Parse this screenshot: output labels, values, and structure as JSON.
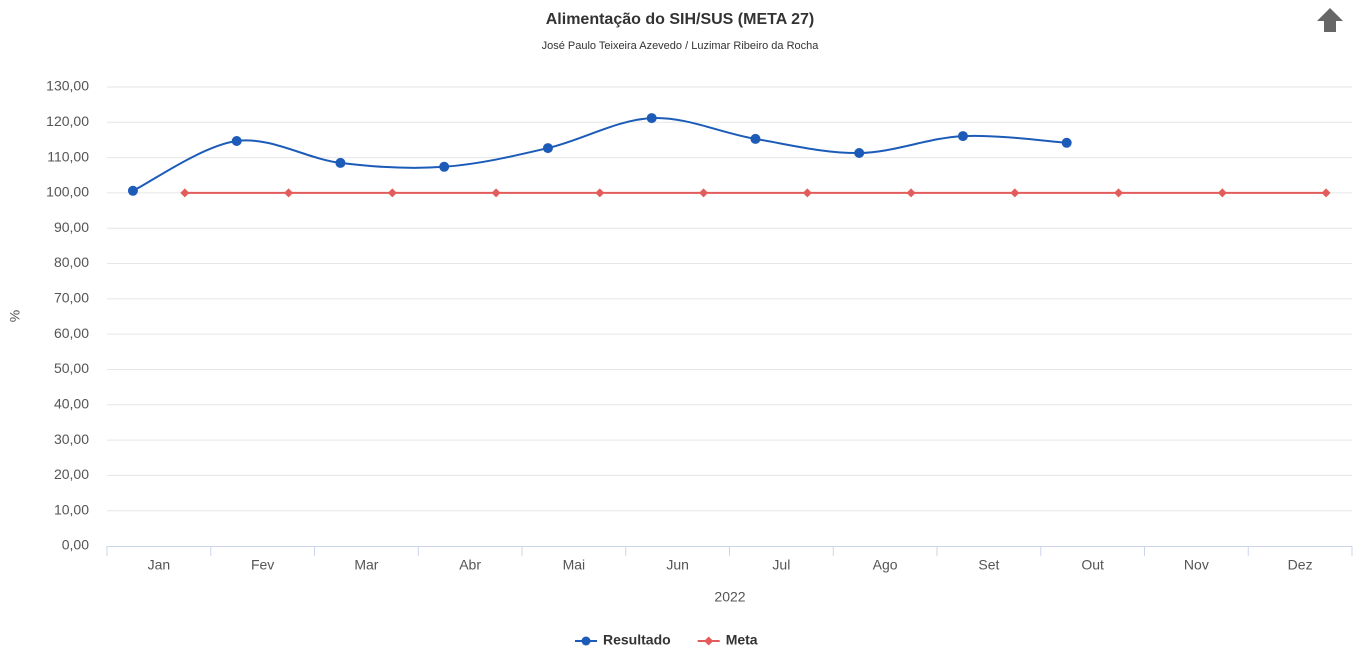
{
  "chart_data": {
    "type": "line",
    "title": "Alimentação do SIH/SUS (META 27)",
    "subtitle": "José Paulo Teixeira Azevedo / Luzimar Ribeiro da Rocha",
    "x_label": "2022",
    "y_label": "%",
    "categories": [
      "Jan",
      "Fev",
      "Mar",
      "Abr",
      "Mai",
      "Jun",
      "Jul",
      "Ago",
      "Set",
      "Out",
      "Nov",
      "Dez"
    ],
    "series": [
      {
        "name": "Resultado",
        "color": "#1c5cb8",
        "smooth": true,
        "marker": "circle",
        "values": [
          100.6,
          114.7,
          108.5,
          107.4,
          112.7,
          121.2,
          115.3,
          111.3,
          116.1,
          114.2,
          null,
          null
        ]
      },
      {
        "name": "Meta",
        "color": "#e35c5c",
        "smooth": false,
        "marker": "diamond",
        "values": [
          100,
          100,
          100,
          100,
          100,
          100,
          100,
          100,
          100,
          100,
          100,
          100
        ]
      }
    ],
    "ylim": [
      0,
      130
    ],
    "yticks": [
      {
        "value": 0,
        "label": "0,00"
      },
      {
        "value": 10,
        "label": "10,00"
      },
      {
        "value": 20,
        "label": "20,00"
      },
      {
        "value": 30,
        "label": "30,00"
      },
      {
        "value": 40,
        "label": "40,00"
      },
      {
        "value": 50,
        "label": "50,00"
      },
      {
        "value": 60,
        "label": "60,00"
      },
      {
        "value": 70,
        "label": "70,00"
      },
      {
        "value": 80,
        "label": "80,00"
      },
      {
        "value": 90,
        "label": "90,00"
      },
      {
        "value": 100,
        "label": "100,00"
      },
      {
        "value": 110,
        "label": "110,00"
      },
      {
        "value": 120,
        "label": "120,00"
      },
      {
        "value": 130,
        "label": "130,00"
      }
    ],
    "grid": true,
    "legend": "bottom"
  }
}
